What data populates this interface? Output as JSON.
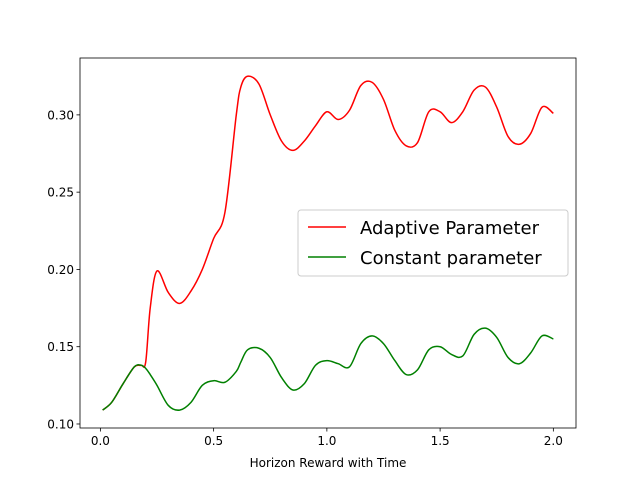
{
  "chart_data": {
    "type": "line",
    "x_label": "Horizon Reward with Time",
    "x": [
      0.01,
      0.05,
      0.1,
      0.15,
      0.18,
      0.2,
      0.22,
      0.25,
      0.3,
      0.35,
      0.4,
      0.45,
      0.5,
      0.55,
      0.6,
      0.62,
      0.65,
      0.7,
      0.75,
      0.8,
      0.85,
      0.9,
      0.95,
      1.0,
      1.05,
      1.1,
      1.15,
      1.2,
      1.25,
      1.3,
      1.35,
      1.4,
      1.45,
      1.5,
      1.55,
      1.6,
      1.65,
      1.7,
      1.75,
      1.8,
      1.85,
      1.9,
      1.95,
      2.0
    ],
    "series": [
      {
        "name": "Adaptive Parameter",
        "color": "#ff0000",
        "values": [
          0.109,
          0.114,
          0.126,
          0.137,
          0.138,
          0.14,
          0.175,
          0.199,
          0.185,
          0.178,
          0.186,
          0.2,
          0.22,
          0.237,
          0.3,
          0.318,
          0.325,
          0.32,
          0.3,
          0.283,
          0.277,
          0.283,
          0.293,
          0.302,
          0.297,
          0.303,
          0.319,
          0.321,
          0.31,
          0.29,
          0.28,
          0.282,
          0.302,
          0.302,
          0.295,
          0.302,
          0.316,
          0.318,
          0.305,
          0.286,
          0.281,
          0.288,
          0.305,
          0.301
        ]
      },
      {
        "name": "Constant parameter",
        "color": "#008000",
        "values": [
          0.109,
          0.114,
          0.126,
          0.137,
          0.138,
          0.136,
          0.132,
          0.125,
          0.112,
          0.109,
          0.114,
          0.125,
          0.128,
          0.127,
          0.134,
          0.14,
          0.148,
          0.149,
          0.143,
          0.13,
          0.122,
          0.126,
          0.138,
          0.141,
          0.139,
          0.137,
          0.152,
          0.157,
          0.152,
          0.141,
          0.132,
          0.135,
          0.148,
          0.15,
          0.145,
          0.144,
          0.158,
          0.162,
          0.156,
          0.143,
          0.139,
          0.146,
          0.157,
          0.155
        ]
      }
    ],
    "xlim": [
      -0.09,
      2.1
    ],
    "ylim": [
      0.0974,
      0.3368
    ],
    "xticks": [
      {
        "value": 0.0,
        "label": "0.0"
      },
      0.5,
      {
        "value": 1.0,
        "label": "1.0"
      },
      1.5,
      {
        "value": 2.0,
        "label": "2.0"
      }
    ],
    "yticks": [
      {
        "value": 0.1,
        "label": "0.10"
      },
      0.15,
      {
        "value": 0.2,
        "label": "0.20"
      },
      0.25,
      {
        "value": 0.3,
        "label": "0.30"
      }
    ],
    "legend": "center right"
  }
}
